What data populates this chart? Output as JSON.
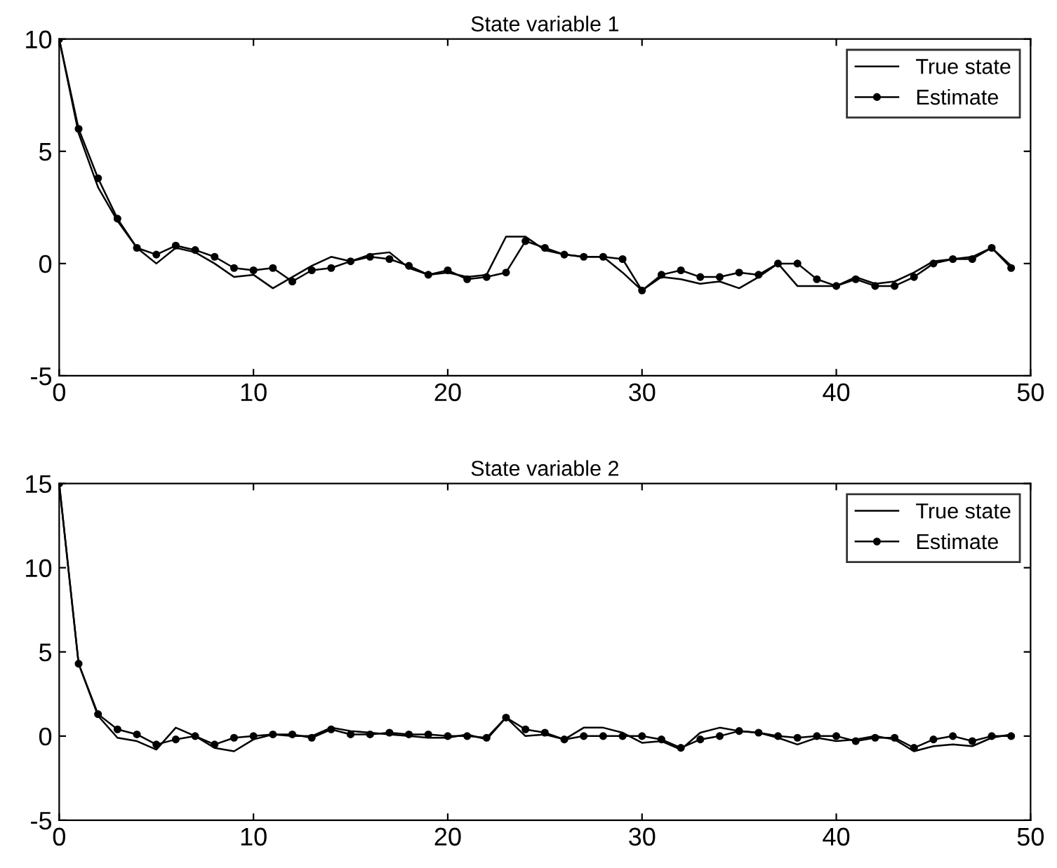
{
  "chart_data": [
    {
      "type": "line",
      "title": "State variable 1",
      "x": [
        0,
        1,
        2,
        3,
        4,
        5,
        6,
        7,
        8,
        9,
        10,
        11,
        12,
        13,
        14,
        15,
        16,
        17,
        18,
        19,
        20,
        21,
        22,
        23,
        24,
        25,
        26,
        27,
        28,
        29,
        30,
        31,
        32,
        33,
        34,
        35,
        36,
        37,
        38,
        39,
        40,
        41,
        42,
        43,
        44,
        45,
        46,
        47,
        48,
        49
      ],
      "xlim": [
        0,
        50
      ],
      "xticks": [
        0,
        10,
        20,
        30,
        40,
        50
      ],
      "ylim": [
        -5,
        10
      ],
      "yticks": [
        -5,
        0,
        5,
        10
      ],
      "legend": "top right",
      "grid": false,
      "series": [
        {
          "name": "True state",
          "color": "#000000",
          "marker": "none",
          "values": [
            10,
            5.8,
            3.4,
            1.9,
            0.7,
            0,
            0.7,
            0.5,
            0,
            -0.6,
            -0.5,
            -1.1,
            -0.6,
            -0.1,
            0.3,
            0.1,
            0.4,
            0.5,
            -0.2,
            -0.5,
            -0.4,
            -0.6,
            -0.5,
            1.2,
            1.2,
            0.6,
            0.4,
            0.3,
            0.3,
            -0.4,
            -1.2,
            -0.6,
            -0.7,
            -0.9,
            -0.8,
            -1.1,
            -0.6,
            0,
            -1.0,
            -1.0,
            -1.0,
            -0.6,
            -0.9,
            -0.8,
            -0.4,
            0.1,
            0.2,
            0.3,
            0.7,
            -0.1
          ]
        },
        {
          "name": "Estimate",
          "color": "#000000",
          "marker": "circle",
          "values": [
            10,
            6,
            3.8,
            2,
            0.7,
            0.4,
            0.8,
            0.6,
            0.3,
            -0.2,
            -0.3,
            -0.2,
            -0.8,
            -0.3,
            -0.2,
            0.1,
            0.3,
            0.2,
            -0.1,
            -0.5,
            -0.3,
            -0.7,
            -0.6,
            -0.4,
            1.0,
            0.7,
            0.4,
            0.3,
            0.3,
            0.2,
            -1.2,
            -0.5,
            -0.3,
            -0.6,
            -0.6,
            -0.4,
            -0.5,
            0,
            0,
            -0.7,
            -1.0,
            -0.7,
            -1.0,
            -1.0,
            -0.6,
            0,
            0.2,
            0.2,
            0.7,
            -0.2
          ]
        }
      ]
    },
    {
      "type": "line",
      "title": "State variable 2",
      "x": [
        0,
        1,
        2,
        3,
        4,
        5,
        6,
        7,
        8,
        9,
        10,
        11,
        12,
        13,
        14,
        15,
        16,
        17,
        18,
        19,
        20,
        21,
        22,
        23,
        24,
        25,
        26,
        27,
        28,
        29,
        30,
        31,
        32,
        33,
        34,
        35,
        36,
        37,
        38,
        39,
        40,
        41,
        42,
        43,
        44,
        45,
        46,
        47,
        48,
        49
      ],
      "xlim": [
        0,
        50
      ],
      "xticks": [
        0,
        10,
        20,
        30,
        40,
        50
      ],
      "ylim": [
        -5,
        15
      ],
      "yticks": [
        -5,
        0,
        5,
        10,
        15
      ],
      "legend": "top right",
      "grid": false,
      "series": [
        {
          "name": "True state",
          "color": "#000000",
          "marker": "none",
          "values": [
            15,
            4.3,
            1.2,
            -0.1,
            -0.3,
            -0.8,
            0.5,
            0,
            -0.7,
            -0.9,
            -0.2,
            0.1,
            0,
            0,
            0.5,
            0.3,
            0.2,
            0.1,
            0,
            -0.1,
            -0.1,
            0.1,
            -0.2,
            1.1,
            0,
            0.1,
            -0.2,
            0.5,
            0.5,
            0.2,
            -0.4,
            -0.3,
            -0.8,
            0.2,
            0.5,
            0.3,
            0.2,
            -0.1,
            -0.5,
            -0.1,
            -0.3,
            -0.2,
            0,
            -0.2,
            -0.9,
            -0.6,
            -0.5,
            -0.6,
            -0.1,
            0.1
          ]
        },
        {
          "name": "Estimate",
          "color": "#000000",
          "marker": "circle",
          "values": [
            15,
            4.3,
            1.3,
            0.4,
            0.1,
            -0.5,
            -0.2,
            0,
            -0.5,
            -0.1,
            0,
            0.1,
            0.1,
            -0.1,
            0.4,
            0.1,
            0.1,
            0.2,
            0.1,
            0.1,
            0,
            0,
            -0.1,
            1.1,
            0.4,
            0.2,
            -0.2,
            0,
            0,
            0,
            0,
            -0.2,
            -0.7,
            -0.2,
            0,
            0.3,
            0.2,
            0,
            -0.1,
            0,
            0,
            -0.3,
            -0.1,
            -0.1,
            -0.7,
            -0.2,
            0,
            -0.3,
            0,
            0
          ]
        }
      ]
    }
  ]
}
